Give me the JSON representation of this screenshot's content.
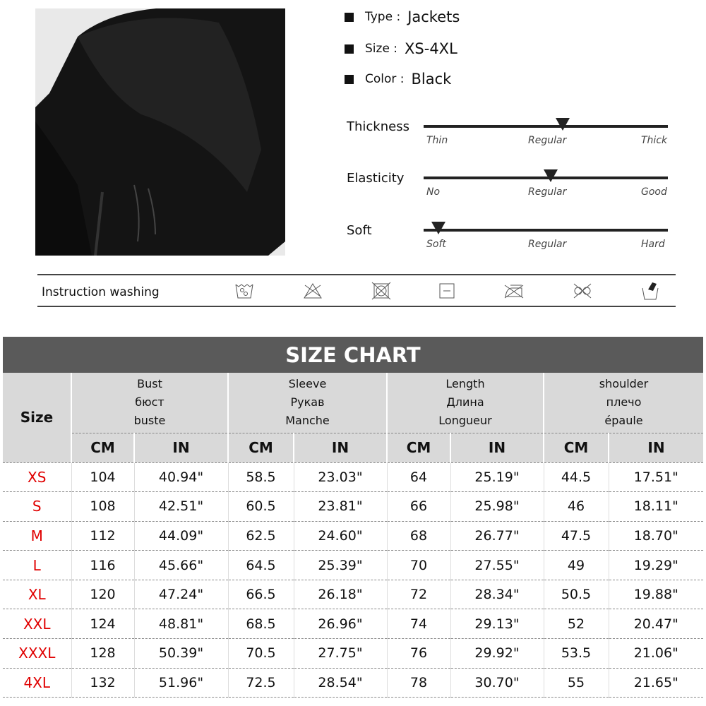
{
  "specs": [
    {
      "key": "Type :",
      "value": "Jackets"
    },
    {
      "key": "Size :",
      "value": "XS-4XL"
    },
    {
      "key": "Color :",
      "value": "Black"
    }
  ],
  "scales": [
    {
      "label": "Thickness",
      "ticks": [
        "Thin",
        "Regular",
        "Thick"
      ],
      "level": 0.57
    },
    {
      "label": "Elasticity",
      "ticks": [
        "No",
        "Regular",
        "Good"
      ],
      "level": 0.52
    },
    {
      "label": "Soft",
      "ticks": [
        "Soft",
        "Regular",
        "Hard"
      ],
      "level": 0.06
    }
  ],
  "washing": {
    "label": "Instruction washing",
    "icons": [
      "wash-30-icon",
      "no-bleach-icon",
      "no-tumble-dry-icon",
      "dry-flat-icon",
      "no-iron-icon",
      "no-dry-clean-icon",
      "hand-wash-icon"
    ]
  },
  "size_chart": {
    "title": "SIZE CHART",
    "size_header": "Size",
    "groups": [
      {
        "l1": "Bust",
        "l2": "бюст",
        "l3": "buste"
      },
      {
        "l1": "Sleeve",
        "l2": "Рукав",
        "l3": "Manche"
      },
      {
        "l1": "Length",
        "l2": "Длина",
        "l3": "Longueur"
      },
      {
        "l1": "shoulder",
        "l2": "плечо",
        "l3": "épaule"
      }
    ],
    "units": [
      "CM",
      "IN",
      "CM",
      "IN",
      "CM",
      "IN",
      "CM",
      "IN"
    ],
    "rows": [
      [
        "XS",
        "104",
        "40.94\"",
        "58.5",
        "23.03\"",
        "64",
        "25.19\"",
        "44.5",
        "17.51\""
      ],
      [
        "S",
        "108",
        "42.51\"",
        "60.5",
        "23.81\"",
        "66",
        "25.98\"",
        "46",
        "18.11\""
      ],
      [
        "M",
        "112",
        "44.09\"",
        "62.5",
        "24.60\"",
        "68",
        "26.77\"",
        "47.5",
        "18.70\""
      ],
      [
        "L",
        "116",
        "45.66\"",
        "64.5",
        "25.39\"",
        "70",
        "27.55\"",
        "49",
        "19.29\""
      ],
      [
        "XL",
        "120",
        "47.24\"",
        "66.5",
        "26.18\"",
        "72",
        "28.34\"",
        "50.5",
        "19.88\""
      ],
      [
        "XXL",
        "124",
        "48.81\"",
        "68.5",
        "26.96\"",
        "74",
        "29.13\"",
        "52",
        "20.47\""
      ],
      [
        "XXXL",
        "128",
        "50.39\"",
        "70.5",
        "27.75\"",
        "76",
        "29.92\"",
        "53.5",
        "21.06\""
      ],
      [
        "4XL",
        "132",
        "51.96\"",
        "72.5",
        "28.54\"",
        "78",
        "30.70\"",
        "55",
        "21.65\""
      ]
    ]
  },
  "colors": {
    "header": "#5a5a5a",
    "subheader": "#d9d9d9",
    "size_label": "#e00000"
  }
}
